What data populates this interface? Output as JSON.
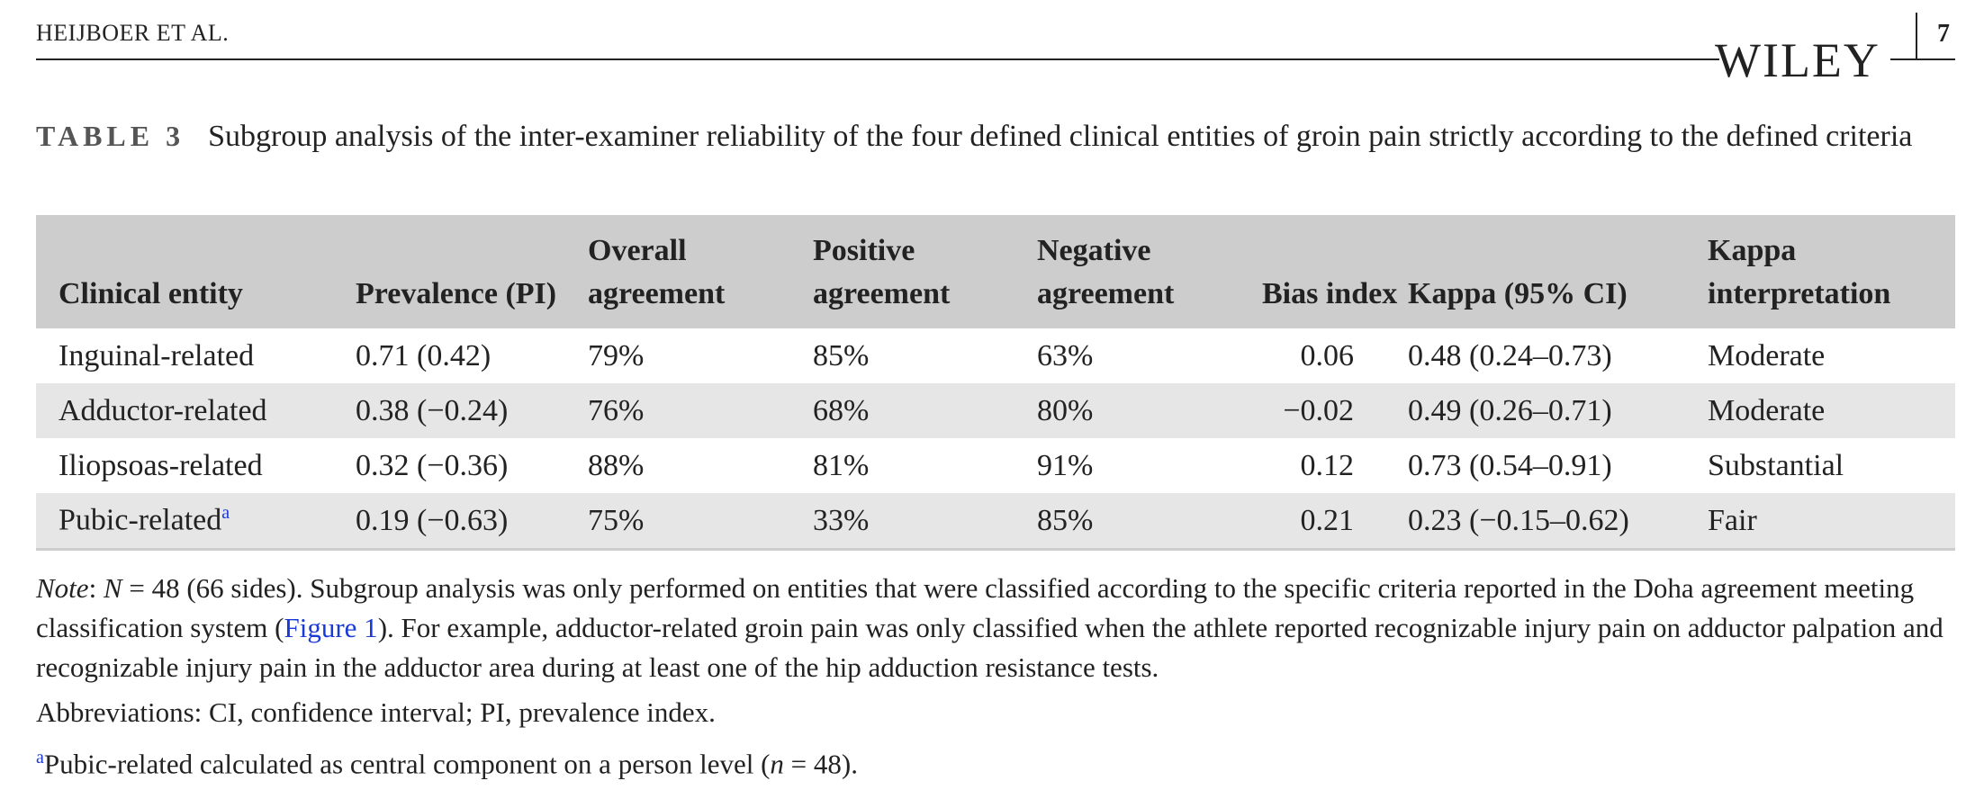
{
  "header": {
    "authors": "HEIJBOER ET AL.",
    "publisher": "WILEY",
    "page": "7"
  },
  "caption": {
    "label": "TABLE 3",
    "text": "Subgroup analysis of the inter-examiner reliability of the four defined clinical entities of groin pain strictly according to the defined criteria"
  },
  "table": {
    "columns": [
      "Clinical entity",
      "Prevalence (PI)",
      "Overall agreement",
      "Positive agreement",
      "Negative agreement",
      "Bias index",
      "Kappa (95% CI)",
      "Kappa interpretation"
    ],
    "rows": [
      [
        "Inguinal-related",
        "0.71 (0.42)",
        "79%",
        "85%",
        "63%",
        "0.06",
        "0.48 (0.24–0.73)",
        "Moderate"
      ],
      [
        "Adductor-related",
        "0.38 (−0.24)",
        "76%",
        "68%",
        "80%",
        "−0.02",
        "0.49 (0.26–0.71)",
        "Moderate"
      ],
      [
        "Iliopsoas-related",
        "0.32 (−0.36)",
        "88%",
        "81%",
        "91%",
        "0.12",
        "0.73 (0.54–0.91)",
        "Substantial"
      ],
      [
        {
          "text": "Pubic-related",
          "sup": "a"
        },
        "0.19 (−0.63)",
        "75%",
        "33%",
        "85%",
        "0.21",
        "0.23 (−0.15–0.62)",
        "Fair"
      ]
    ]
  },
  "notes": [
    [
      {
        "text": "Note",
        "italic": true
      },
      {
        "text": ": "
      },
      {
        "text": "N",
        "italic": true
      },
      {
        "text": " = 48 (66 sides). Subgroup analysis was only performed on entities that were classified according to the specific criteria reported in the Doha agreement meeting classification system ("
      },
      {
        "text": "Figure 1",
        "link": true
      },
      {
        "text": "). For example, adductor-related groin pain was only classified when the athlete reported recognizable injury pain on adductor palpation and recognizable injury pain in the adductor area during at least one of the hip adduction resistance tests."
      }
    ],
    [
      {
        "text": "Abbreviations: CI, confidence interval; PI, prevalence index."
      }
    ],
    [
      {
        "text": "a",
        "sup": true
      },
      {
        "text": "Pubic-related calculated as central component on a person level ("
      },
      {
        "text": "n",
        "italic": true
      },
      {
        "text": " = 48)."
      }
    ]
  ]
}
